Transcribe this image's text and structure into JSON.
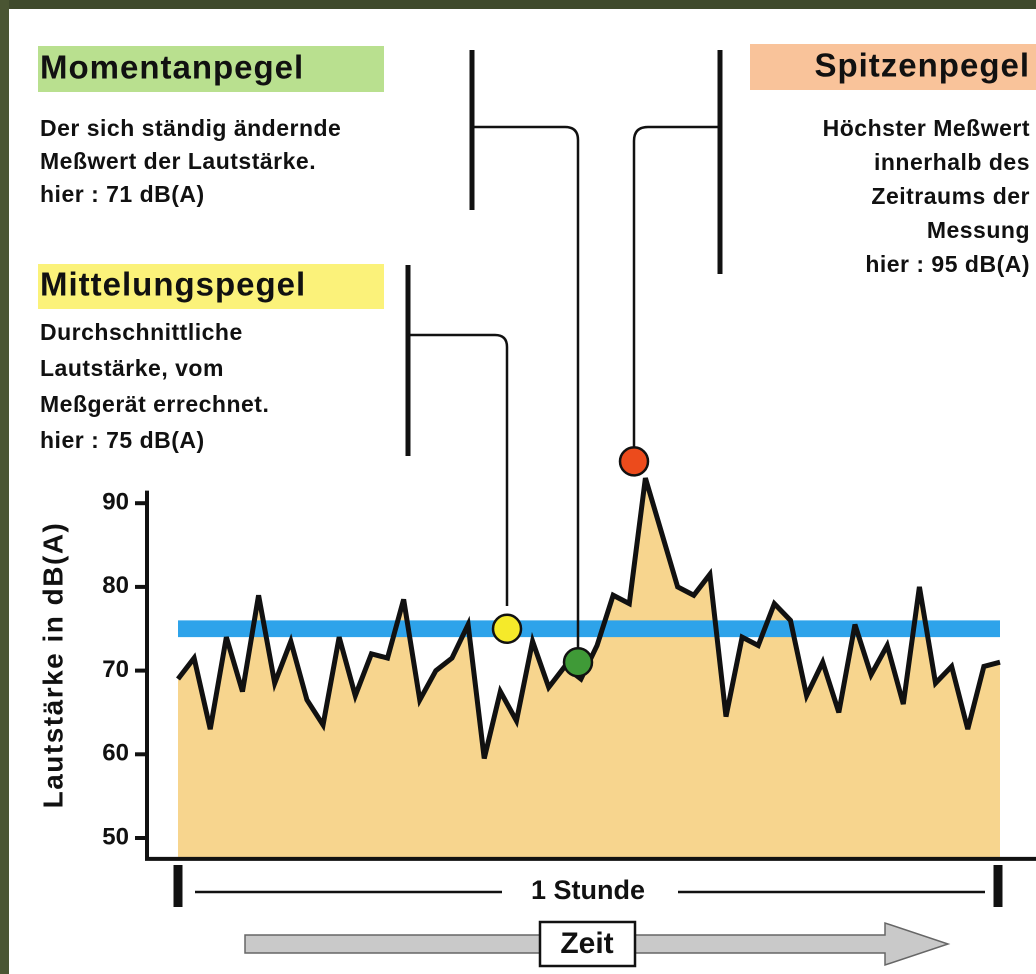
{
  "chart_data": {
    "type": "line",
    "y_label": "Lautstärke in dB(A)",
    "ylim": [
      47.5,
      91.5
    ],
    "yticks": [
      50,
      60,
      70,
      80,
      90
    ],
    "color": "#111111",
    "fill_color": "#f7d58e",
    "values": [
      69,
      71.5,
      63,
      74,
      67.5,
      79,
      68.5,
      73.5,
      66.5,
      63.5,
      74,
      67,
      72,
      71.5,
      78.5,
      66.5,
      70,
      71.5,
      75.5,
      59.5,
      67.5,
      64,
      73.5,
      68,
      70.5,
      69,
      73,
      79,
      78,
      93,
      86.5,
      80,
      79,
      81.5,
      64.5,
      74,
      73,
      78,
      76,
      67,
      71,
      65,
      75.5,
      69.5,
      73,
      66,
      80,
      68.5,
      70.5,
      63,
      70.5,
      71
    ],
    "mean_level": 75,
    "mean_color": "#2ea3ea",
    "current_level": 71,
    "peak_level": 95,
    "duration_label": "1 Stunde",
    "time_label": "Zeit",
    "annotations": {
      "current": {
        "title": "Momentanpegel",
        "lines": [
          "Der sich ständig ändernde",
          "Meßwert der Lautstärke.",
          "hier :  71 dB(A)"
        ]
      },
      "mean": {
        "title": "Mittelungspegel",
        "lines": [
          "Durchschnittliche",
          "Lautstärke, vom",
          "Meßgerät errechnet.",
          "hier :  75 dB(A)"
        ]
      },
      "peak": {
        "title": "Spitzenpegel",
        "lines": [
          "Höchster Meßwert",
          "innerhalb des",
          "Zeitraums der",
          "Messung",
          "hier :  95 dB(A)"
        ]
      }
    }
  }
}
